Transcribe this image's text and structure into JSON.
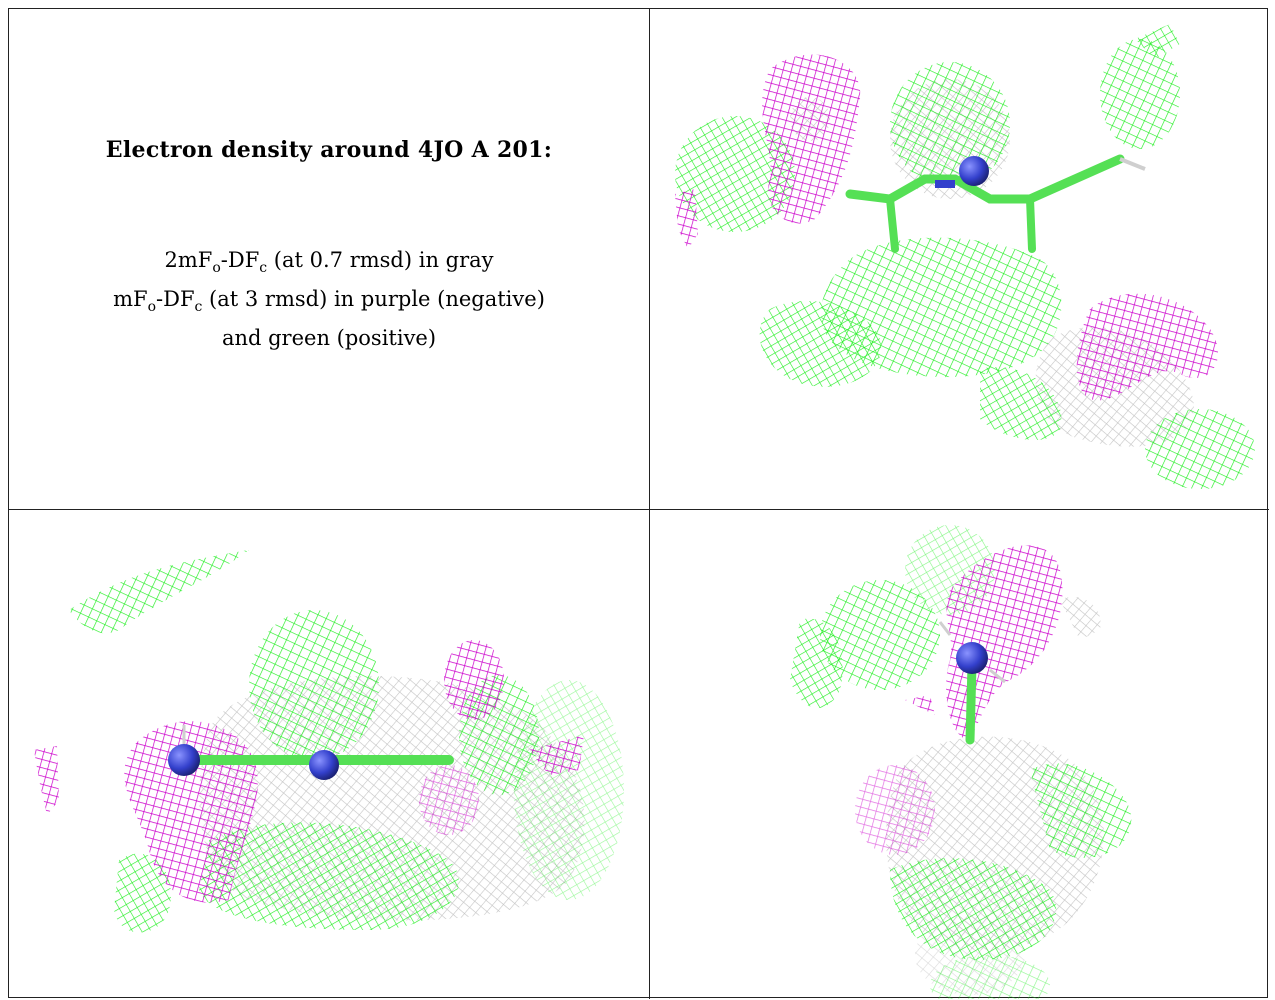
{
  "caption": {
    "title": "Electron density around 4JO A 201:",
    "line1": {
      "main": "2mF",
      "o_sub": "o",
      "mid": "-DF",
      "c_sub": "c",
      "tail": " (at 0.7 rmsd) in gray"
    },
    "line2": {
      "main": "mF",
      "o_sub": "o",
      "mid": "-DF",
      "c_sub": "c",
      "tail": " (at 3 rmsd) in purple (negative)"
    },
    "line3": "and green (positive)"
  },
  "colors": {
    "green_mesh": "#22ee22",
    "purple_mesh": "#cc00cc",
    "gray_mesh": "#c8c8c8",
    "atom_blue": "#3340cc",
    "stick_green": "#55e055",
    "grid_line": "#222222"
  },
  "panels": [
    {
      "view": "view-1",
      "depicts": "ligand with green, purple and gray density mesh"
    },
    {
      "view": "view-2",
      "depicts": "ligand side view with density mesh"
    },
    {
      "view": "view-3",
      "depicts": "ligand top view with density mesh"
    }
  ]
}
